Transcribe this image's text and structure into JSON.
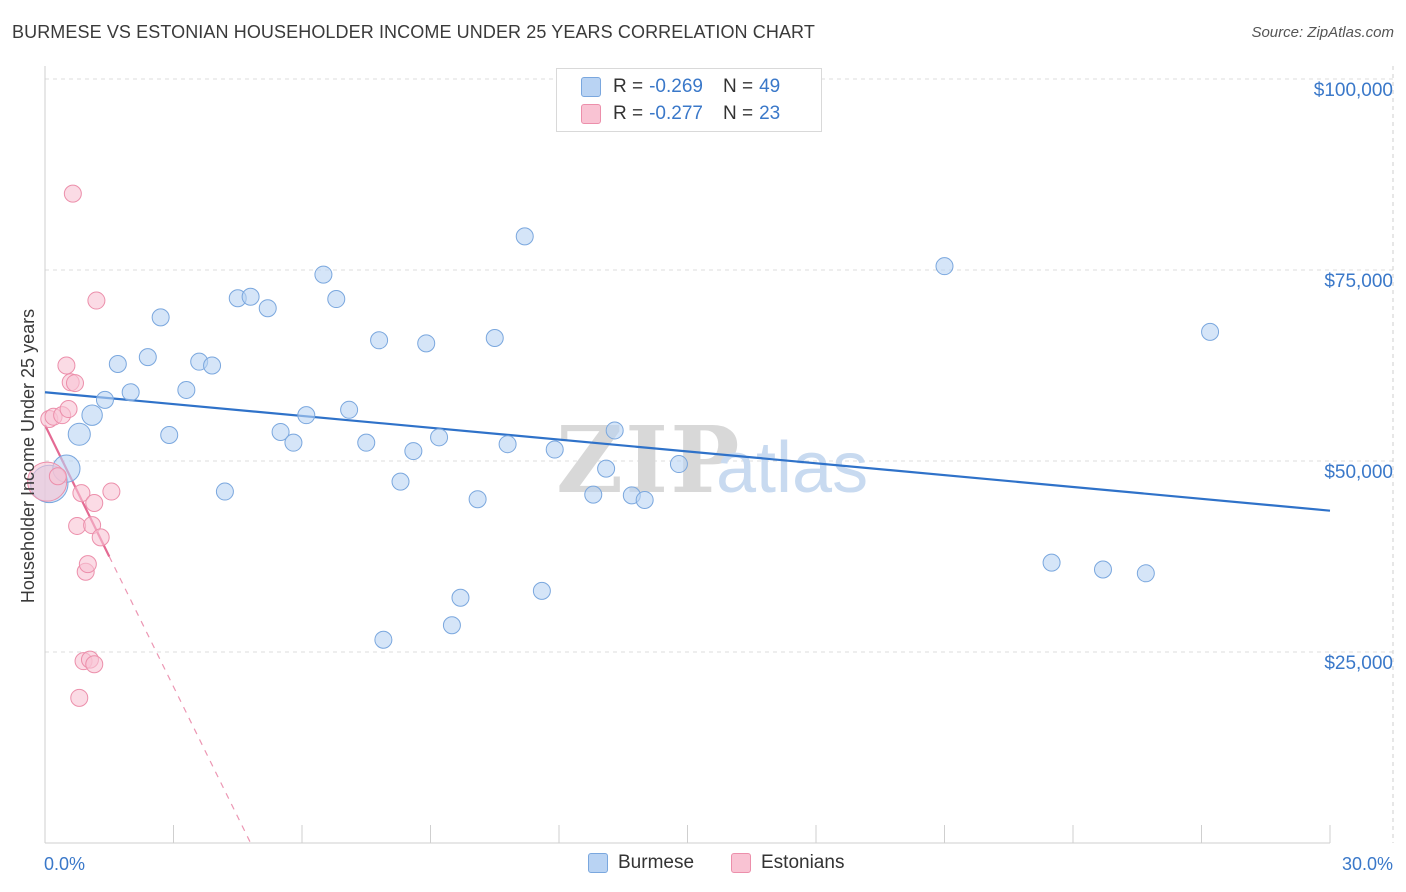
{
  "header": {
    "title": "BURMESE VS ESTONIAN HOUSEHOLDER INCOME UNDER 25 YEARS CORRELATION CHART",
    "source": "Source: ZipAtlas.com"
  },
  "watermark": {
    "zip": "ZIP",
    "atlas": "atlas"
  },
  "legend": {
    "rows": [
      {
        "r_label": "R = ",
        "r_value": "-0.269",
        "n_label": "N = ",
        "n_value": "49"
      },
      {
        "r_label": "R = ",
        "r_value": "-0.277",
        "n_label": "N = ",
        "n_value": "23"
      }
    ]
  },
  "colors": {
    "burmese_fill": "#b9d3f3",
    "burmese_stroke": "#7aa7de",
    "burmese_line": "#2f72c9",
    "estonian_fill": "#f9c3d3",
    "estonian_stroke": "#ec8fab",
    "estonian_line": "#e46a93",
    "tick_text": "#3a78c9",
    "grid": "#dddddd"
  },
  "chart_data": {
    "type": "scatter",
    "title": "BURMESE VS ESTONIAN HOUSEHOLDER INCOME UNDER 25 YEARS CORRELATION CHART",
    "xlabel": "",
    "ylabel": "Householder Income Under 25 years",
    "xlim": [
      0,
      30
    ],
    "ylim": [
      0,
      100000
    ],
    "x_tick_labels": [
      "0.0%",
      "30.0%"
    ],
    "y_ticks": [
      {
        "value": 25000,
        "label": "$25,000"
      },
      {
        "value": 50000,
        "label": "$50,000"
      },
      {
        "value": 75000,
        "label": "$75,000"
      },
      {
        "value": 100000,
        "label": "$100,000"
      }
    ],
    "series": [
      {
        "name": "Burmese",
        "r": -0.269,
        "n": 49,
        "trend": {
          "x": [
            0,
            30
          ],
          "y": [
            59000,
            43500
          ],
          "style": "solid"
        },
        "points": [
          {
            "x": 0.1,
            "y": 47000,
            "s": 2.2
          },
          {
            "x": 0.5,
            "y": 49000,
            "s": 1.6
          },
          {
            "x": 0.8,
            "y": 53500,
            "s": 1.3
          },
          {
            "x": 1.1,
            "y": 56000,
            "s": 1.2
          },
          {
            "x": 1.4,
            "y": 58000,
            "s": 1
          },
          {
            "x": 1.7,
            "y": 62700,
            "s": 1
          },
          {
            "x": 2.0,
            "y": 59000,
            "s": 1
          },
          {
            "x": 2.4,
            "y": 63600,
            "s": 1
          },
          {
            "x": 2.7,
            "y": 68800,
            "s": 1
          },
          {
            "x": 2.9,
            "y": 53400,
            "s": 1
          },
          {
            "x": 3.3,
            "y": 59300,
            "s": 1
          },
          {
            "x": 3.6,
            "y": 63000,
            "s": 1
          },
          {
            "x": 3.9,
            "y": 62500,
            "s": 1
          },
          {
            "x": 4.2,
            "y": 46000,
            "s": 1
          },
          {
            "x": 4.5,
            "y": 71300,
            "s": 1
          },
          {
            "x": 4.8,
            "y": 71500,
            "s": 1
          },
          {
            "x": 5.2,
            "y": 70000,
            "s": 1
          },
          {
            "x": 5.5,
            "y": 53800,
            "s": 1
          },
          {
            "x": 5.8,
            "y": 52400,
            "s": 1
          },
          {
            "x": 6.1,
            "y": 56000,
            "s": 1
          },
          {
            "x": 6.5,
            "y": 74400,
            "s": 1
          },
          {
            "x": 6.8,
            "y": 71200,
            "s": 1
          },
          {
            "x": 7.1,
            "y": 56700,
            "s": 1
          },
          {
            "x": 7.5,
            "y": 52400,
            "s": 1
          },
          {
            "x": 7.8,
            "y": 65800,
            "s": 1
          },
          {
            "x": 8.3,
            "y": 47300,
            "s": 1
          },
          {
            "x": 8.6,
            "y": 51300,
            "s": 1
          },
          {
            "x": 8.9,
            "y": 65400,
            "s": 1
          },
          {
            "x": 9.2,
            "y": 53100,
            "s": 1
          },
          {
            "x": 9.5,
            "y": 28500,
            "s": 1
          },
          {
            "x": 9.7,
            "y": 32100,
            "s": 1
          },
          {
            "x": 10.1,
            "y": 45000,
            "s": 1
          },
          {
            "x": 10.5,
            "y": 66100,
            "s": 1
          },
          {
            "x": 10.8,
            "y": 52200,
            "s": 1
          },
          {
            "x": 11.2,
            "y": 79400,
            "s": 1
          },
          {
            "x": 11.6,
            "y": 33000,
            "s": 1
          },
          {
            "x": 11.9,
            "y": 51500,
            "s": 1
          },
          {
            "x": 12.8,
            "y": 45600,
            "s": 1
          },
          {
            "x": 13.1,
            "y": 49000,
            "s": 1
          },
          {
            "x": 13.3,
            "y": 54000,
            "s": 1
          },
          {
            "x": 13.7,
            "y": 45500,
            "s": 1
          },
          {
            "x": 14.0,
            "y": 44900,
            "s": 1
          },
          {
            "x": 14.8,
            "y": 49600,
            "s": 1
          },
          {
            "x": 7.9,
            "y": 26600,
            "s": 1
          },
          {
            "x": 21.0,
            "y": 75500,
            "s": 1
          },
          {
            "x": 23.5,
            "y": 36700,
            "s": 1
          },
          {
            "x": 24.7,
            "y": 35800,
            "s": 1
          },
          {
            "x": 25.7,
            "y": 35300,
            "s": 1
          },
          {
            "x": 27.2,
            "y": 66900,
            "s": 1
          }
        ]
      },
      {
        "name": "Estonians",
        "r": -0.277,
        "n": 23,
        "trend": {
          "x": [
            0,
            1.5
          ],
          "y": [
            54700,
            37500
          ],
          "style": "solid",
          "dashed_ext": {
            "x": [
              1.5,
              4.8
            ],
            "y": [
              37500,
              0
            ]
          }
        },
        "points": [
          {
            "x": 0.05,
            "y": 47300,
            "s": 2.3
          },
          {
            "x": 0.1,
            "y": 55500,
            "s": 1
          },
          {
            "x": 0.2,
            "y": 55800,
            "s": 1
          },
          {
            "x": 0.3,
            "y": 48000,
            "s": 1
          },
          {
            "x": 0.4,
            "y": 56000,
            "s": 1
          },
          {
            "x": 0.5,
            "y": 62500,
            "s": 1
          },
          {
            "x": 0.55,
            "y": 56800,
            "s": 1
          },
          {
            "x": 0.6,
            "y": 60300,
            "s": 1
          },
          {
            "x": 0.65,
            "y": 85000,
            "s": 1
          },
          {
            "x": 0.7,
            "y": 60200,
            "s": 1
          },
          {
            "x": 0.75,
            "y": 41500,
            "s": 1
          },
          {
            "x": 0.8,
            "y": 19000,
            "s": 1
          },
          {
            "x": 0.85,
            "y": 45800,
            "s": 1
          },
          {
            "x": 0.9,
            "y": 23800,
            "s": 1
          },
          {
            "x": 0.95,
            "y": 35500,
            "s": 1
          },
          {
            "x": 1.0,
            "y": 36500,
            "s": 1
          },
          {
            "x": 1.05,
            "y": 24000,
            "s": 1
          },
          {
            "x": 1.1,
            "y": 41600,
            "s": 1
          },
          {
            "x": 1.15,
            "y": 23400,
            "s": 1
          },
          {
            "x": 1.15,
            "y": 44500,
            "s": 1
          },
          {
            "x": 1.2,
            "y": 71000,
            "s": 1
          },
          {
            "x": 1.3,
            "y": 40000,
            "s": 1
          },
          {
            "x": 1.55,
            "y": 46000,
            "s": 1
          }
        ]
      }
    ],
    "legend": [
      "Burmese",
      "Estonians"
    ]
  }
}
